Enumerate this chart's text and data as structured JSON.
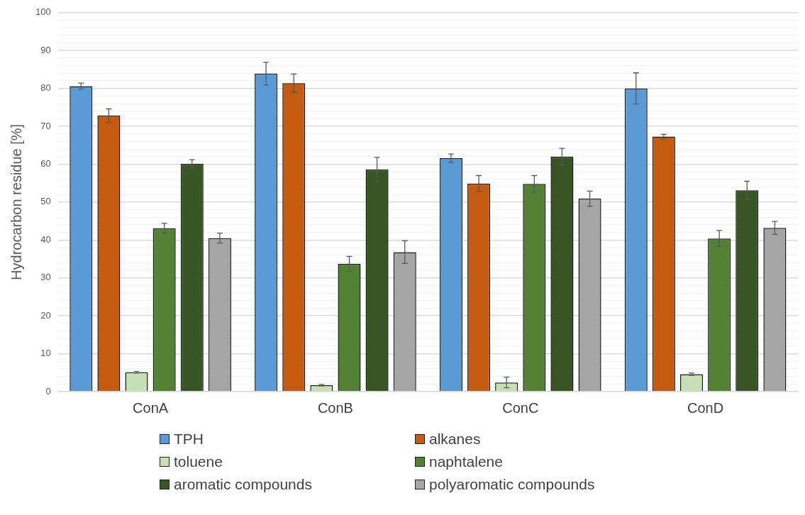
{
  "chart_data": {
    "type": "bar",
    "ylabel": "Hydrocarbon residue [%]",
    "categories": [
      "ConA",
      "ConB",
      "ConC",
      "ConD"
    ],
    "series": [
      {
        "name": "TPH",
        "color": "#5b9bd5",
        "values": [
          80.6,
          83.9,
          61.6,
          80.0
        ],
        "errors": [
          0.8,
          3,
          1.1,
          4.1
        ]
      },
      {
        "name": "alkanes",
        "color": "#c55a11",
        "values": [
          72.8,
          81.4,
          54.9,
          67.3
        ],
        "errors": [
          1.8,
          2.4,
          2.1,
          0.6
        ]
      },
      {
        "name": "toluene",
        "color": "#c5e0b4",
        "values": [
          5.1,
          1.7,
          2.4,
          4.6
        ],
        "errors": [
          0.2,
          0.2,
          1.4,
          0.3
        ]
      },
      {
        "name": "naphtalene",
        "color": "#548235",
        "values": [
          43.1,
          33.7,
          54.8,
          40.4
        ],
        "errors": [
          1.3,
          2,
          2.2,
          2.1
        ]
      },
      {
        "name": "aromatic compounds",
        "color": "#375623",
        "values": [
          60.1,
          58.6,
          62.0,
          53.1
        ],
        "errors": [
          1.1,
          3.2,
          2.2,
          2.4
        ]
      },
      {
        "name": "polyaromatic compounds",
        "color": "#a5a5a5",
        "values": [
          40.5,
          36.8,
          50.9,
          43.2
        ],
        "errors": [
          1.3,
          3,
          2,
          1.7
        ]
      }
    ],
    "ylim": [
      0,
      100
    ],
    "yticks": [
      0,
      {
        "value": 2,
        "label": null
      },
      {
        "value": 4,
        "label": null
      },
      {
        "value": 6,
        "label": null
      },
      {
        "value": 8,
        "label": null
      },
      10,
      {
        "value": 12,
        "label": null
      },
      {
        "value": 14,
        "label": null
      },
      {
        "value": 16,
        "label": null
      },
      {
        "value": 18,
        "label": null
      },
      20,
      {
        "value": 22,
        "label": null
      },
      {
        "value": 24,
        "label": null
      },
      {
        "value": 26,
        "label": null
      },
      {
        "value": 28,
        "label": null
      },
      30,
      {
        "value": 32,
        "label": null
      },
      {
        "value": 34,
        "label": null
      },
      {
        "value": 36,
        "label": null
      },
      {
        "value": 38,
        "label": null
      },
      40,
      {
        "value": 42,
        "label": null
      },
      {
        "value": 44,
        "label": null
      },
      {
        "value": 46,
        "label": null
      },
      {
        "value": 48,
        "label": null
      },
      50,
      {
        "value": 52,
        "label": null
      },
      {
        "value": 54,
        "label": null
      },
      {
        "value": 56,
        "label": null
      },
      {
        "value": 58,
        "label": null
      },
      60,
      {
        "value": 62,
        "label": null
      },
      {
        "value": 64,
        "label": null
      },
      {
        "value": 66,
        "label": null
      },
      {
        "value": 68,
        "label": null
      },
      70,
      {
        "value": 72,
        "label": null
      },
      {
        "value": 74,
        "label": null
      },
      {
        "value": 76,
        "label": null
      },
      {
        "value": 78,
        "label": null
      },
      80,
      {
        "value": 82,
        "label": null
      },
      {
        "value": 84,
        "label": null
      },
      {
        "value": 86,
        "label": null
      },
      {
        "value": 88,
        "label": null
      },
      90,
      {
        "value": 92,
        "label": null
      },
      {
        "value": 94,
        "label": null
      },
      {
        "value": 96,
        "label": null
      },
      {
        "value": 98,
        "label": null
      },
      100
    ],
    "grid": "y",
    "legend": "bottom"
  }
}
